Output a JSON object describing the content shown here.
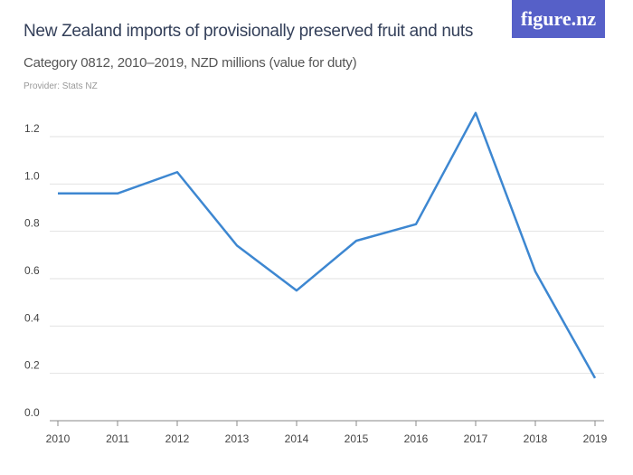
{
  "header": {
    "title": "New Zealand imports of provisionally preserved fruit and nuts",
    "subtitle": "Category 0812, 2010–2019, NZD millions (value for duty)",
    "provider": "Provider: Stats NZ",
    "logo": "figure.nz",
    "logo_color": "#5660c8"
  },
  "chart_data": {
    "type": "line",
    "title": "New Zealand imports of provisionally preserved fruit and nuts",
    "subtitle": "Category 0812, 2010–2019, NZD millions (value for duty)",
    "categories": [
      "2010",
      "2011",
      "2012",
      "2013",
      "2014",
      "2015",
      "2016",
      "2017",
      "2018",
      "2019"
    ],
    "values": [
      0.96,
      0.96,
      1.05,
      0.74,
      0.55,
      0.76,
      0.83,
      1.3,
      0.63,
      0.18
    ],
    "yticks": [
      "0.0",
      "0.2",
      "0.4",
      "0.6",
      "0.8",
      "1.0",
      "1.2"
    ],
    "ylim": [
      0,
      1.3
    ],
    "grid": true,
    "line_color": "#3d87d1"
  }
}
